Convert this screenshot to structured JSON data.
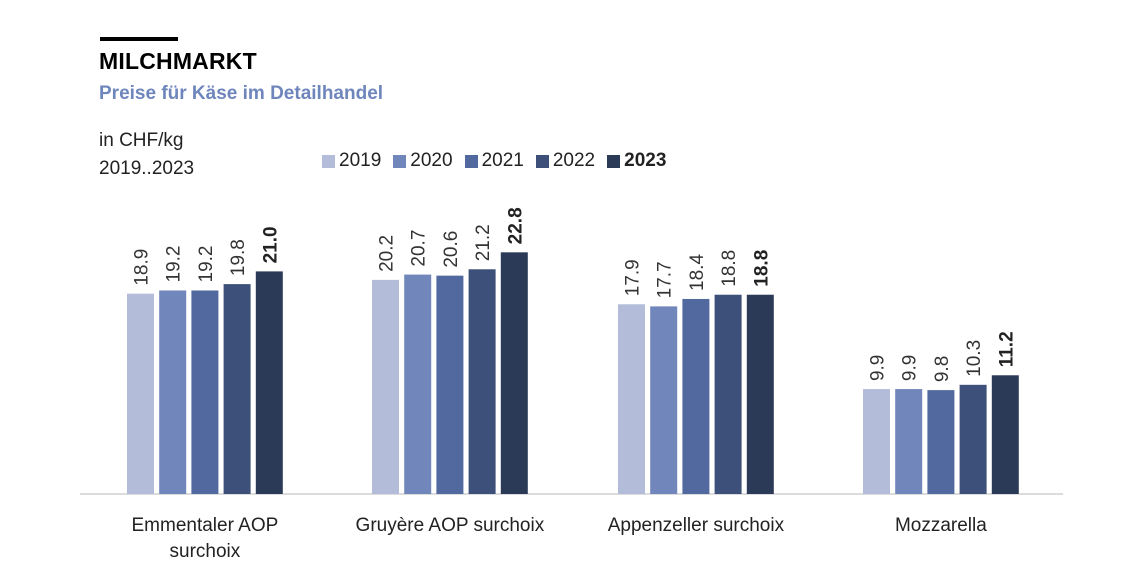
{
  "header": {
    "title": "MILCHMARKT",
    "subtitle": "Preise für Käse im Detailhandel",
    "unit_line1": "in CHF/kg",
    "unit_line2": "2019..2023"
  },
  "colors": [
    "#b3bdd9",
    "#7186bb",
    "#52699f",
    "#3d5079",
    "#2b3a57"
  ],
  "chart_data": {
    "type": "bar",
    "categories": [
      "Emmentaler AOP surchoix",
      "Gruyère AOP surchoix",
      "Appenzeller surchoix",
      "Mozzarella"
    ],
    "category_lines": [
      [
        "Emmentaler AOP",
        "surchoix"
      ],
      [
        "Gruyère AOP surchoix"
      ],
      [
        "Appenzeller surchoix"
      ],
      [
        "Mozzarella"
      ]
    ],
    "series": [
      {
        "name": "2019",
        "values": [
          18.9,
          20.2,
          17.9,
          9.9
        ],
        "labels": [
          "18.9",
          "20.2",
          "17.9",
          "9.9"
        ]
      },
      {
        "name": "2020",
        "values": [
          19.2,
          20.7,
          17.7,
          9.9
        ],
        "labels": [
          "19.2",
          "20.7",
          "17.7",
          "9.9"
        ]
      },
      {
        "name": "2021",
        "values": [
          19.2,
          20.6,
          18.4,
          9.8
        ],
        "labels": [
          "19.2",
          "20.6",
          "18.4",
          "9.8"
        ]
      },
      {
        "name": "2022",
        "values": [
          19.8,
          21.2,
          18.8,
          10.3
        ],
        "labels": [
          "19.8",
          "21.2",
          "18.8",
          "10.3"
        ]
      },
      {
        "name": "2023",
        "values": [
          21.0,
          22.8,
          18.8,
          11.2
        ],
        "labels": [
          "21.0",
          "22.8",
          "18.8",
          "11.2"
        ]
      }
    ],
    "highlight_series": "2023",
    "ylim": [
      0,
      30
    ],
    "grid": false,
    "legend_placement": "top"
  }
}
